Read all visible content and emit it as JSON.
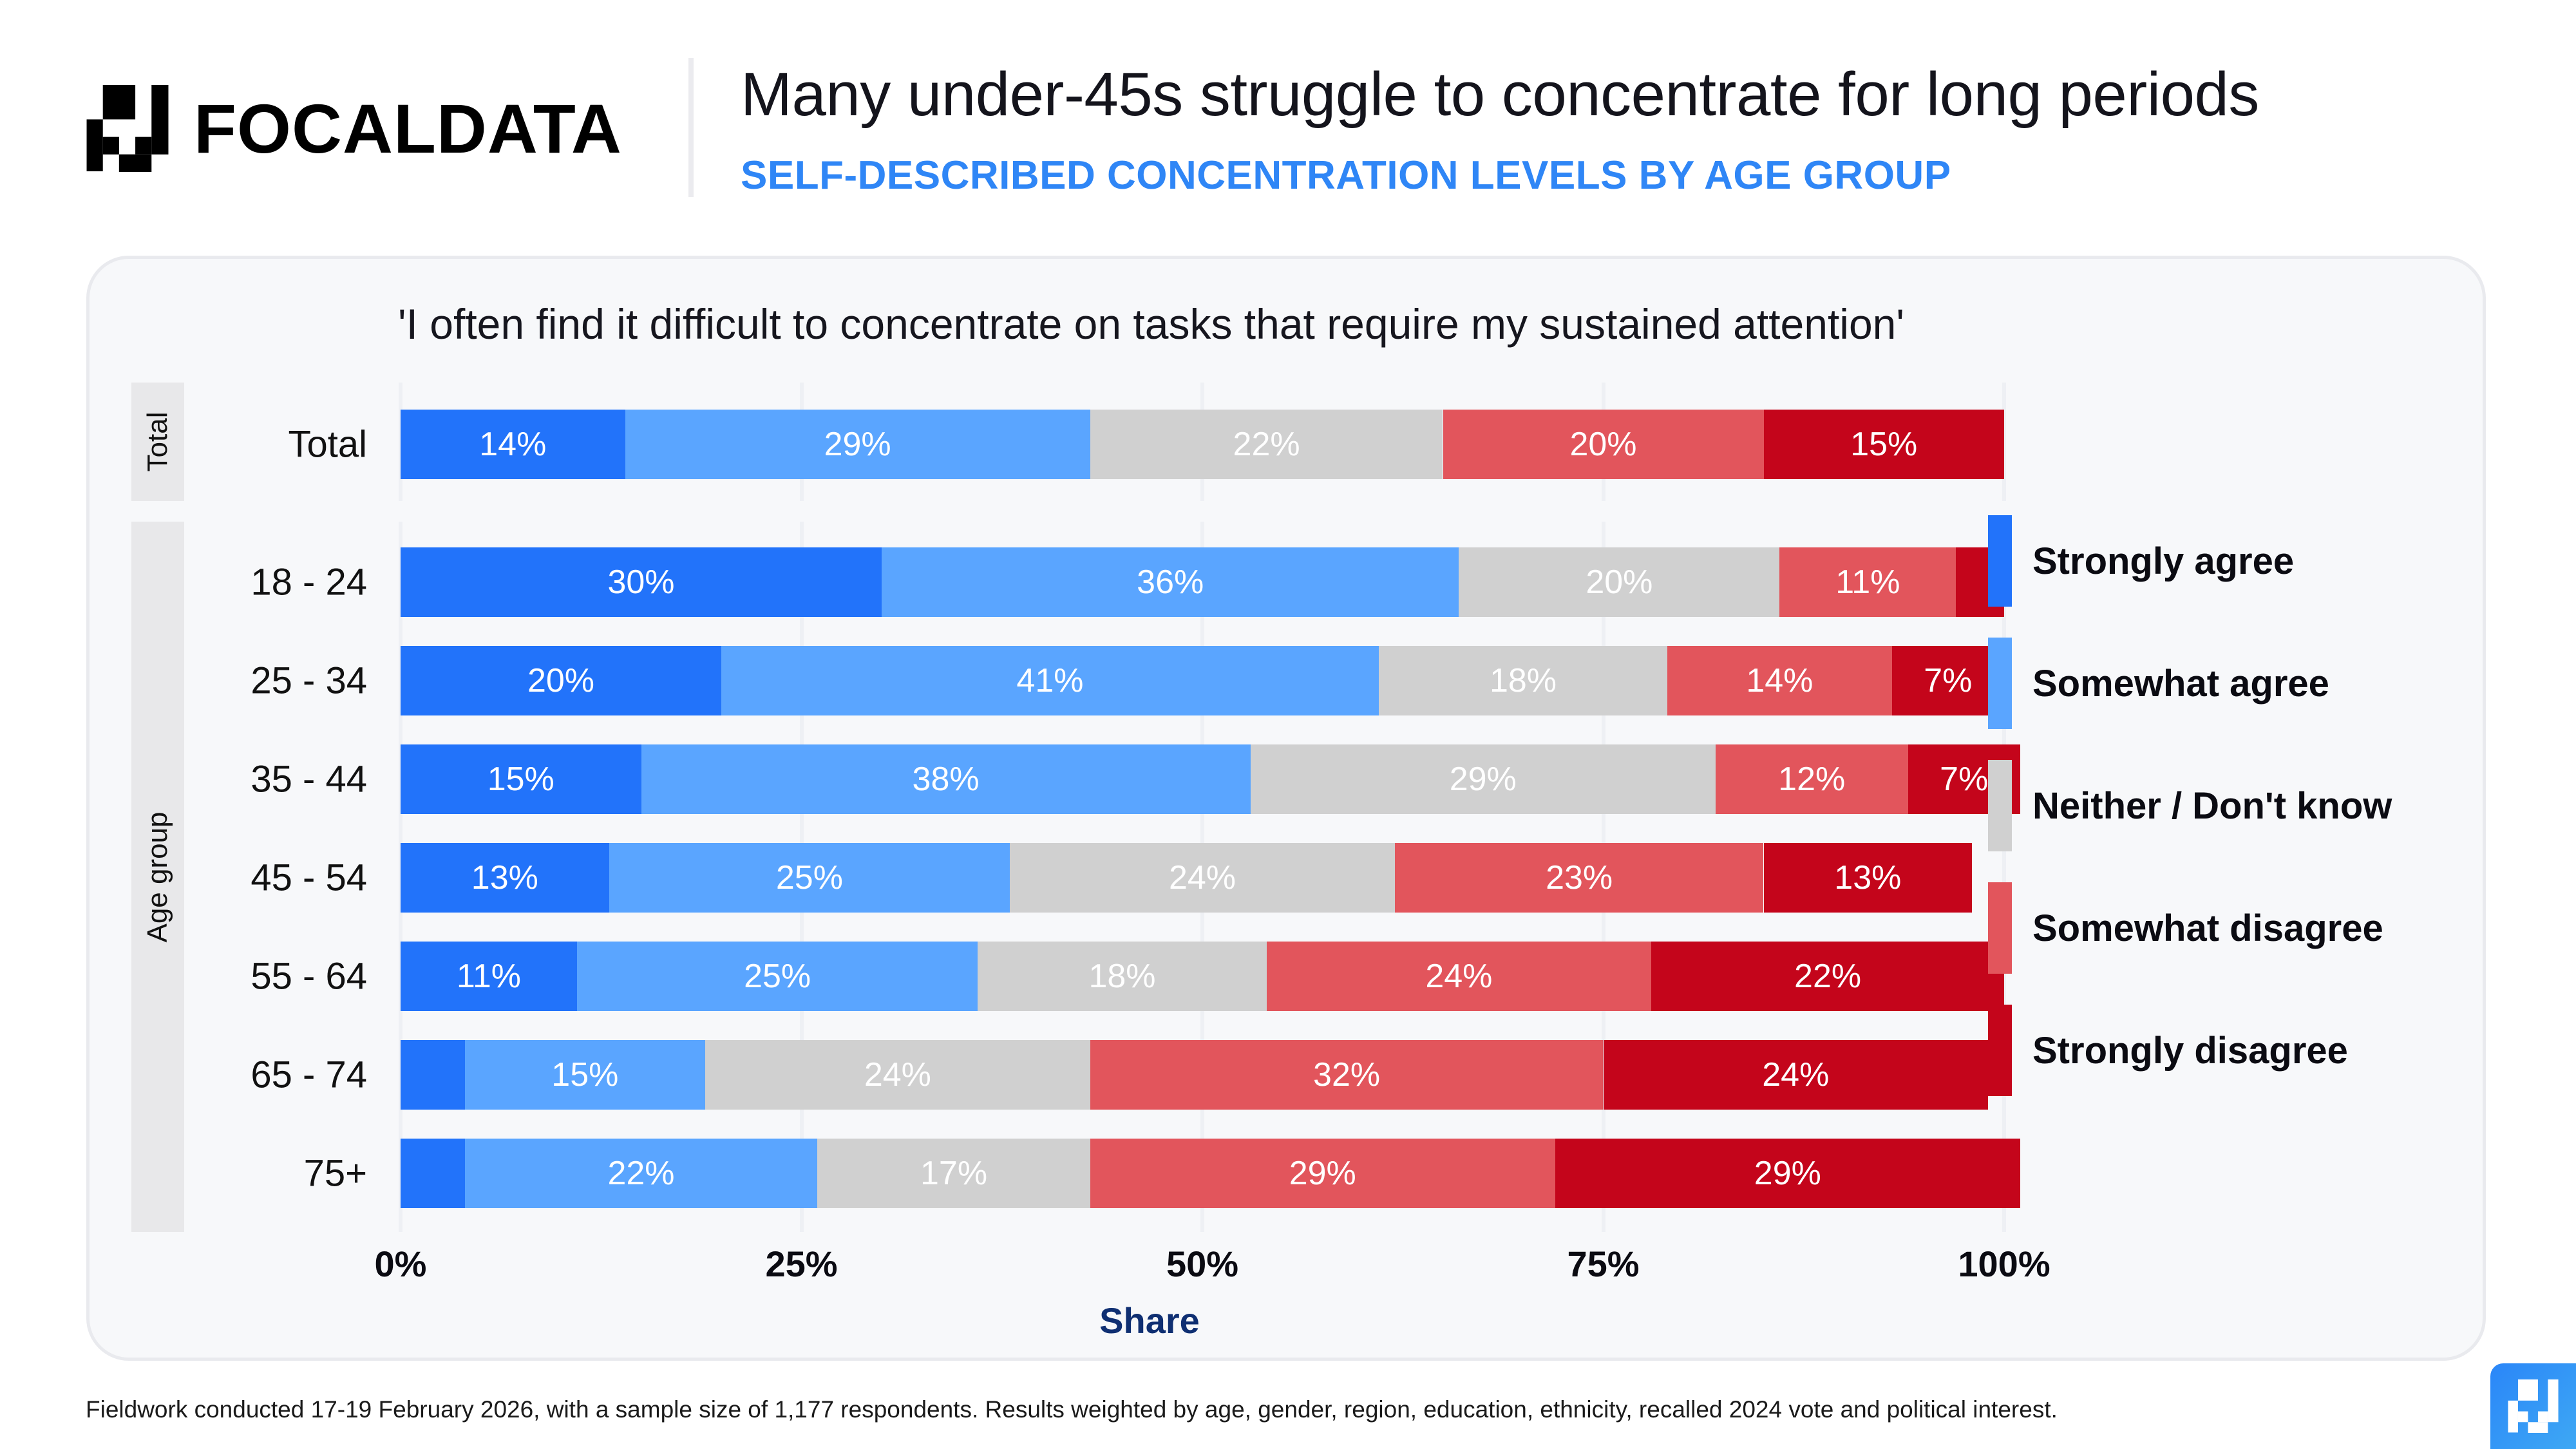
{
  "header": {
    "brand": "FOCALDATA",
    "title": "Many under-45s struggle to concentrate for long periods",
    "subtitle": "SELF-DESCRIBED CONCENTRATION LEVELS BY AGE GROUP"
  },
  "footer": {
    "note": "Fieldwork conducted 17-19 February 2026, with a sample size of 1,177 respondents. Results weighted by age, gender, region, education, ethnicity, recalled 2024 vote and political interest."
  },
  "chart_data": {
    "type": "bar",
    "orientation": "horizontal",
    "stacked": true,
    "title": "'I often find it difficult to concentrate on tasks that require my sustained attention'",
    "xlabel": "Share",
    "ylabel": "",
    "xlim": [
      0,
      100
    ],
    "x_ticks": [
      "0%",
      "25%",
      "50%",
      "75%",
      "100%"
    ],
    "grid": true,
    "legend_position": "right",
    "facets": [
      {
        "label": "Total",
        "categories": [
          "Total"
        ]
      },
      {
        "label": "Age group",
        "categories": [
          "18 - 24",
          "25 - 34",
          "35 - 44",
          "45 - 54",
          "55 - 64",
          "65 - 74",
          "75+"
        ]
      }
    ],
    "categories": [
      "Total",
      "18 - 24",
      "25 - 34",
      "35 - 44",
      "45 - 54",
      "55 - 64",
      "65 - 74",
      "75+"
    ],
    "series": [
      {
        "name": "Strongly agree",
        "color": "#2273fa",
        "values": [
          14,
          30,
          20,
          15,
          13,
          11,
          4,
          4
        ],
        "labels": [
          "14%",
          "30%",
          "20%",
          "15%",
          "13%",
          "11%",
          "",
          ""
        ]
      },
      {
        "name": "Somewhat agree",
        "color": "#5aa5ff",
        "values": [
          29,
          36,
          41,
          38,
          25,
          25,
          15,
          22
        ],
        "labels": [
          "29%",
          "36%",
          "41%",
          "38%",
          "25%",
          "25%",
          "15%",
          "22%"
        ]
      },
      {
        "name": "Neither / Don't know",
        "color": "#d0d0d0",
        "values": [
          22,
          20,
          18,
          29,
          24,
          18,
          24,
          17
        ],
        "labels": [
          "22%",
          "20%",
          "18%",
          "29%",
          "24%",
          "18%",
          "24%",
          "17%"
        ]
      },
      {
        "name": "Somewhat disagree",
        "color": "#e2555c",
        "values": [
          20,
          11,
          14,
          12,
          23,
          24,
          32,
          29
        ],
        "labels": [
          "20%",
          "11%",
          "14%",
          "12%",
          "23%",
          "24%",
          "32%",
          "29%"
        ]
      },
      {
        "name": "Strongly disagree",
        "color": "#c4051b",
        "values": [
          15,
          3,
          7,
          7,
          13,
          22,
          24,
          29
        ],
        "labels": [
          "15%",
          "",
          "7%",
          "7%",
          "13%",
          "22%",
          "24%",
          "29%"
        ]
      }
    ]
  }
}
